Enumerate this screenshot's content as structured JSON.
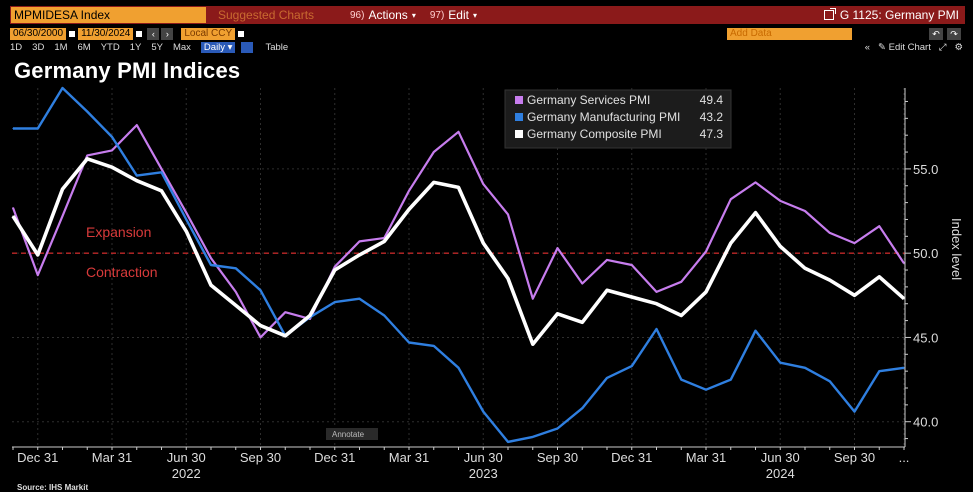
{
  "toolbar": {
    "ticker": "MPMIDESA Index",
    "suggested_charts": "Suggested Charts",
    "actions_num": "96)",
    "actions_label": "Actions",
    "edit_num": "97)",
    "edit_label": "Edit",
    "chart_id": "G 1125: Germany PMI",
    "start_date": "06/30/2000",
    "end_date": "11/30/2024",
    "currency": "Local CCY",
    "add_data": "Add Data",
    "ranges": [
      "1D",
      "3D",
      "1M",
      "6M",
      "YTD",
      "1Y",
      "5Y",
      "Max"
    ],
    "frequency": "Daily",
    "table_label": "Table",
    "edit_chart_label": "Edit Chart"
  },
  "title": "Germany PMI Indices",
  "annotate_label": "Annotate",
  "source": "Source: IHS Markit",
  "chart_data": {
    "type": "line",
    "title": "Germany PMI Indices",
    "ylabel": "Index level",
    "ylim": [
      38.5,
      59.8
    ],
    "yticks": [
      40.0,
      45.0,
      50.0,
      55.0
    ],
    "ytick_labels": [
      "40.0",
      "45.0",
      "50.0",
      "55.0"
    ],
    "grid": true,
    "legend_position": "top-right",
    "x": [
      "2021-11",
      "2021-12",
      "2022-01",
      "2022-02",
      "2022-03",
      "2022-04",
      "2022-05",
      "2022-06",
      "2022-07",
      "2022-08",
      "2022-09",
      "2022-10",
      "2022-11",
      "2022-12",
      "2023-01",
      "2023-02",
      "2023-03",
      "2023-04",
      "2023-05",
      "2023-06",
      "2023-07",
      "2023-08",
      "2023-09",
      "2023-10",
      "2023-11",
      "2023-12",
      "2024-01",
      "2024-02",
      "2024-03",
      "2024-04",
      "2024-05",
      "2024-06",
      "2024-07",
      "2024-08",
      "2024-09",
      "2024-10",
      "2024-11"
    ],
    "x_tick_labels": [
      {
        "x": "2021-12",
        "label": "Dec 31"
      },
      {
        "x": "2022-03",
        "label": "Mar 31"
      },
      {
        "x": "2022-06",
        "label": "Jun 30"
      },
      {
        "x": "2022-09",
        "label": "Sep 30"
      },
      {
        "x": "2022-12",
        "label": "Dec 31"
      },
      {
        "x": "2023-03",
        "label": "Mar 31"
      },
      {
        "x": "2023-06",
        "label": "Jun 30"
      },
      {
        "x": "2023-09",
        "label": "Sep 30"
      },
      {
        "x": "2023-12",
        "label": "Dec 31"
      },
      {
        "x": "2024-03",
        "label": "Mar 31"
      },
      {
        "x": "2024-06",
        "label": "Jun 30"
      },
      {
        "x": "2024-09",
        "label": "Sep 30"
      },
      {
        "x": "2024-11",
        "label": "..."
      }
    ],
    "year_labels": [
      {
        "x": "2022-06",
        "label": "2022"
      },
      {
        "x": "2023-06",
        "label": "2023"
      },
      {
        "x": "2024-06",
        "label": "2024"
      }
    ],
    "series": [
      {
        "name": "Germany Services PMI",
        "last": "49.4",
        "color": "#c77dee",
        "values": [
          52.7,
          48.7,
          52.2,
          55.8,
          56.1,
          57.6,
          55.0,
          52.4,
          49.7,
          47.7,
          45.0,
          46.5,
          46.1,
          49.2,
          50.7,
          50.9,
          53.7,
          56.0,
          57.2,
          54.1,
          52.3,
          47.3,
          50.3,
          48.2,
          49.6,
          49.3,
          47.7,
          48.3,
          50.1,
          53.2,
          54.2,
          53.1,
          52.5,
          51.2,
          50.6,
          51.6,
          49.4
        ]
      },
      {
        "name": "Germany Manufacturing PMI",
        "last": "43.2",
        "color": "#2f7fe0",
        "values": [
          57.4,
          57.4,
          59.8,
          58.4,
          56.9,
          54.6,
          54.8,
          52.0,
          49.3,
          49.1,
          47.8,
          45.1,
          46.2,
          47.1,
          47.3,
          46.3,
          44.7,
          44.5,
          43.2,
          40.6,
          38.8,
          39.1,
          39.6,
          40.8,
          42.6,
          43.3,
          45.5,
          42.5,
          41.9,
          42.5,
          45.4,
          43.5,
          43.2,
          42.4,
          40.6,
          43.0,
          43.2
        ]
      },
      {
        "name": "Germany Composite PMI",
        "last": "47.3",
        "color": "#ffffff",
        "values": [
          52.2,
          49.9,
          53.8,
          55.6,
          55.1,
          54.3,
          53.7,
          51.3,
          48.1,
          46.9,
          45.7,
          45.1,
          46.3,
          49.0,
          49.9,
          50.7,
          52.6,
          54.2,
          53.9,
          50.6,
          48.5,
          44.6,
          46.4,
          45.9,
          47.8,
          47.4,
          47.0,
          46.3,
          47.7,
          50.6,
          52.4,
          50.4,
          49.1,
          48.4,
          47.5,
          48.6,
          47.3
        ]
      }
    ],
    "annotations": [
      {
        "label": "Expansion",
        "color": "#d83a3a"
      },
      {
        "label": "Contraction",
        "color": "#d83a3a"
      }
    ],
    "reference_line": {
      "y": 50.0,
      "color": "#c02828"
    }
  }
}
